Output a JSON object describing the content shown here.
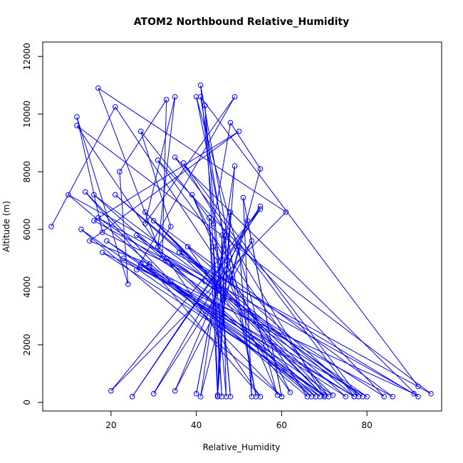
{
  "chart_data": {
    "type": "line",
    "title": "ATOM2 Northbound Relative_Humidity",
    "xlabel": "Relative_Humidity",
    "ylabel": "Altitude (m)",
    "xlim": [
      4,
      97.5
    ],
    "ylim": [
      -300,
      12500
    ],
    "xticks": [
      20,
      40,
      60,
      80
    ],
    "yticks": [
      0,
      2000,
      4000,
      6000,
      8000,
      10000,
      12000
    ],
    "grid": false,
    "color": "#0000ff",
    "marker": "open-circle",
    "x": [
      6,
      21,
      66,
      10,
      95,
      12,
      55,
      14,
      60,
      13,
      69,
      16,
      79,
      17,
      91,
      18,
      70,
      19,
      75,
      21,
      77,
      23,
      80,
      26,
      68,
      27,
      72,
      28,
      70,
      29,
      86,
      30,
      71,
      31,
      84,
      33,
      67,
      34,
      77,
      35,
      92,
      36,
      70,
      37,
      78,
      38,
      62,
      39,
      59,
      40,
      54,
      41,
      48,
      42,
      46,
      43,
      45,
      44,
      47,
      46,
      45,
      47,
      40,
      48,
      45,
      49,
      41,
      50,
      53,
      51,
      60,
      52,
      35,
      53,
      30,
      55,
      25,
      55,
      20,
      61,
      17,
      32,
      33,
      22,
      24,
      12,
      18,
      42,
      16,
      50,
      15,
      29,
      26,
      49,
      28,
      35,
      31,
      34,
      27,
      44,
      48,
      55,
      48,
      41,
      92
    ],
    "y": [
      6100,
      10250,
      200,
      7200,
      300,
      9600,
      200,
      7300,
      200,
      6000,
      200,
      7200,
      200,
      6400,
      300,
      5200,
      250,
      5600,
      200,
      7200,
      200,
      5000,
      200,
      5800,
      200,
      4800,
      250,
      6600,
      200,
      4700,
      200,
      6300,
      200,
      8400,
      200,
      5000,
      200,
      4200,
      200,
      8500,
      200,
      5200,
      200,
      8300,
      200,
      5400,
      350,
      7200,
      250,
      10600,
      200,
      11000,
      200,
      10300,
      200,
      6400,
      200,
      5400,
      200,
      5800,
      200,
      5800,
      300,
      6600,
      250,
      8200,
      200,
      5400,
      200,
      7100,
      200,
      6300,
      400,
      5600,
      300,
      6800,
      200,
      6700,
      400,
      6600,
      10900,
      5000,
      10500,
      8000,
      4100,
      9900,
      5900,
      4200,
      6300,
      9400,
      5600,
      4800,
      4600,
      10600,
      6200,
      10600,
      5400,
      6100,
      9400,
      6200,
      9700,
      8100,
      4200,
      10600,
      550
    ]
  }
}
